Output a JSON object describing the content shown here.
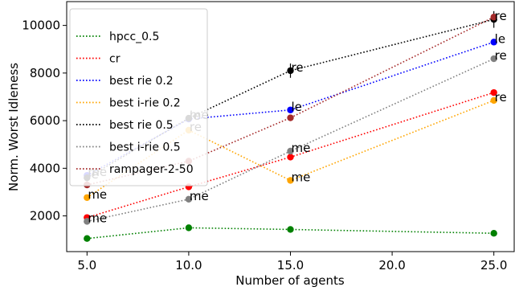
{
  "chart_data": {
    "type": "line",
    "xlabel": "Number of agents",
    "ylabel": "Norm. Worst Idleness",
    "xlim": [
      4.0,
      26.0
    ],
    "ylim": [
      500,
      11000
    ],
    "xticks": [
      5.0,
      10.0,
      15.0,
      20.0,
      25.0
    ],
    "xtick_labels": [
      "5.0",
      "10.0",
      "15.0",
      "20.0",
      "25.0"
    ],
    "yticks": [
      2000,
      4000,
      6000,
      8000,
      10000
    ],
    "ytick_labels": [
      "2000",
      "4000",
      "6000",
      "8000",
      "10000"
    ],
    "grid": false,
    "legend_position": "top-left",
    "series": [
      {
        "name": "hpcc_0.5",
        "color": "#008000",
        "style": "dotted",
        "marker_color": "#008000",
        "x": [
          5,
          10,
          15,
          25
        ],
        "y": [
          1050,
          1500,
          1430,
          1270
        ],
        "labels": [
          "",
          "",
          "",
          ""
        ],
        "err": [
          0,
          0,
          0,
          0
        ]
      },
      {
        "name": "cr",
        "color": "#ff0000",
        "style": "dotted",
        "marker_color": "#ff0000",
        "x": [
          5,
          10,
          15,
          25
        ],
        "y": [
          1930,
          3220,
          4470,
          7180
        ],
        "labels": [
          "",
          "",
          "",
          ""
        ],
        "err": [
          0,
          0,
          0,
          0
        ]
      },
      {
        "name": "best rie 0.2",
        "color": "#0000ff",
        "style": "dotted",
        "marker_color": "#0000ff",
        "x": [
          5,
          10,
          15,
          25
        ],
        "y": [
          3700,
          6070,
          6450,
          9300
        ],
        "labels": [
          "me",
          "le",
          "le",
          "le"
        ],
        "err": [
          0,
          0,
          0,
          0
        ]
      },
      {
        "name": "best i-rie 0.2",
        "color": "#ffa500",
        "style": "dotted",
        "marker_color": "#ffa500",
        "x": [
          5,
          10,
          15,
          25
        ],
        "y": [
          2770,
          5600,
          3490,
          6850
        ],
        "labels": [
          "me",
          "re",
          "me",
          "re"
        ],
        "err": [
          0,
          0,
          0,
          0
        ]
      },
      {
        "name": "best rie 0.5",
        "color": "#000000",
        "style": "dotted",
        "marker_color": "#000000",
        "x": [
          5,
          10,
          15,
          25
        ],
        "y": [
          3600,
          6100,
          8100,
          10250
        ],
        "labels": [
          "le",
          "me",
          "re",
          "re"
        ],
        "err": [
          150,
          0,
          300,
          350
        ]
      },
      {
        "name": "best i-rie 0.5",
        "color": "#808080",
        "style": "dotted",
        "marker_color": "#808080",
        "x": [
          5,
          10,
          15,
          25
        ],
        "y": [
          1770,
          2700,
          4720,
          8600
        ],
        "labels": [
          "me",
          "me",
          "me",
          "re"
        ],
        "err": [
          0,
          0,
          0,
          0
        ]
      },
      {
        "name": "rampager-2-50",
        "color": "#a52a2a",
        "style": "dotted",
        "marker_color": "#a52a2a",
        "x": [
          5,
          10,
          15,
          25
        ],
        "y": [
          3300,
          4300,
          6120,
          10350
        ],
        "labels": [
          "",
          "",
          "",
          ""
        ],
        "err": [
          0,
          0,
          0,
          0
        ]
      }
    ]
  }
}
